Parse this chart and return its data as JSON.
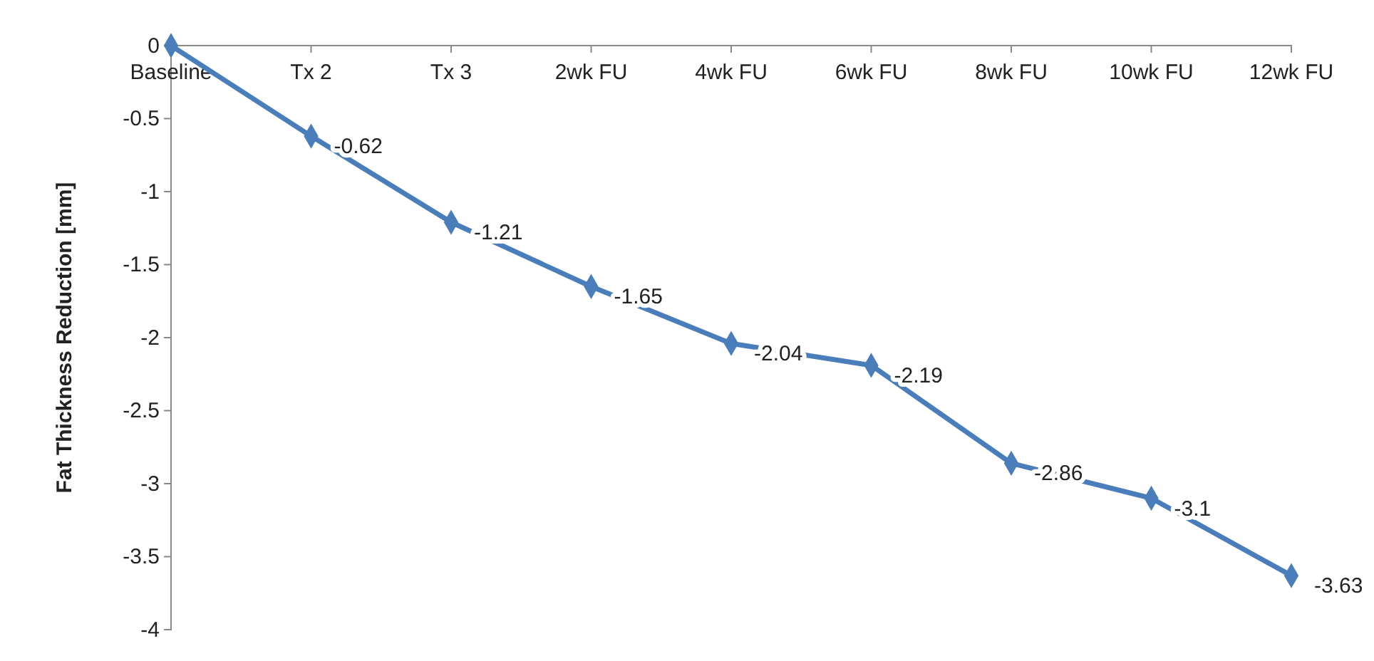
{
  "chart_data": {
    "type": "line",
    "ylabel": "Fat Thickness Reduction [mm]",
    "categories": [
      "Baseline",
      "Tx 2",
      "Tx 3",
      "2wk FU",
      "4wk FU",
      "6wk FU",
      "8wk FU",
      "10wk FU",
      "12wk FU"
    ],
    "values": [
      0,
      -0.62,
      -1.21,
      -1.65,
      -2.04,
      -2.19,
      -2.86,
      -3.1,
      -3.63
    ],
    "value_labels": [
      null,
      "-0.62",
      "-1.21",
      "-1.65",
      "-2.04",
      "-2.19",
      "-2.86",
      "-3.1",
      "-3.63"
    ],
    "color": "#4a7ebb",
    "marker": "diamond",
    "line_style": "solid",
    "ylim": [
      -4,
      0
    ],
    "yticks": [
      0,
      -0.5,
      -1,
      -1.5,
      -2,
      -2.5,
      -3,
      -3.5,
      -4
    ]
  }
}
